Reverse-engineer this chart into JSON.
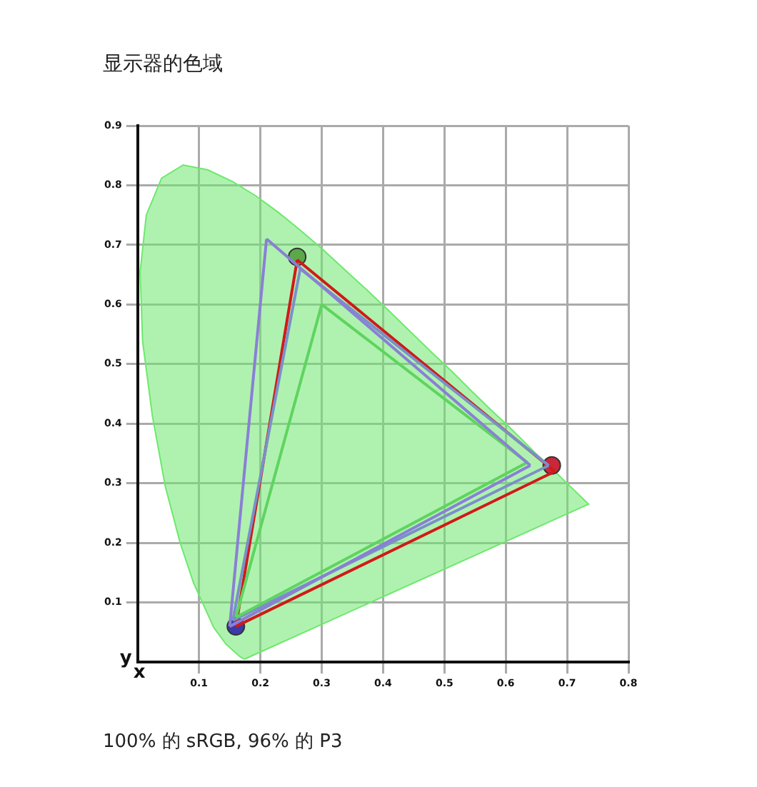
{
  "chart_data": {
    "type": "line",
    "title": "显示器的色域",
    "xlabel": "x",
    "ylabel": "y",
    "xlim": [
      0,
      0.8
    ],
    "xticks": [
      0.1,
      0.2,
      0.3,
      0.4,
      0.5,
      0.6,
      0.7,
      0.8
    ],
    "ylim": [
      0,
      0.9
    ],
    "yticks": [
      0.1,
      0.2,
      0.3,
      0.4,
      0.5,
      0.6,
      0.7,
      0.8,
      0.9
    ],
    "grid": true,
    "line_style": "solid",
    "annotations": [
      "100% 的 sRGB, 96% 的 P3"
    ],
    "series": [
      {
        "type": "area",
        "color": "#6ee86e",
        "x": [
          0.174,
          0.167,
          0.144,
          0.124,
          0.091,
          0.069,
          0.045,
          0.024,
          0.008,
          0.004,
          0.014,
          0.039,
          0.074,
          0.114,
          0.155,
          0.193,
          0.23,
          0.266,
          0.302,
          0.337,
          0.373,
          0.409,
          0.444,
          0.479,
          0.513,
          0.545,
          0.575,
          0.603,
          0.627,
          0.648,
          0.666,
          0.692,
          0.735,
          0.174
        ],
        "values": [
          0.005,
          0.009,
          0.03,
          0.058,
          0.133,
          0.201,
          0.295,
          0.413,
          0.538,
          0.655,
          0.75,
          0.812,
          0.834,
          0.826,
          0.806,
          0.782,
          0.754,
          0.724,
          0.692,
          0.659,
          0.625,
          0.59,
          0.555,
          0.52,
          0.487,
          0.454,
          0.424,
          0.397,
          0.373,
          0.351,
          0.334,
          0.308,
          0.265,
          0.005
        ]
      },
      {
        "type": "line",
        "color": "#8a7fd6",
        "x": [
          0.15,
          0.21
        ],
        "values": [
          0.06,
          0.71
        ]
      },
      {
        "type": "line",
        "color": "#8a7fd6",
        "x": [
          0.21,
          0.64
        ],
        "values": [
          0.71,
          0.33
        ]
      },
      {
        "type": "line",
        "color": "#8a7fd6",
        "x": [
          0.15,
          0.64
        ],
        "values": [
          0.06,
          0.33
        ]
      },
      {
        "type": "line",
        "color": "#5fd45f",
        "x": [
          0.16,
          0.3
        ],
        "values": [
          0.075,
          0.6
        ]
      },
      {
        "type": "line",
        "color": "#5fd45f",
        "x": [
          0.3,
          0.635
        ],
        "values": [
          0.6,
          0.335
        ]
      },
      {
        "type": "line",
        "color": "#5fd45f",
        "x": [
          0.16,
          0.635
        ],
        "values": [
          0.075,
          0.335
        ]
      },
      {
        "type": "line",
        "color": "#7a90c8",
        "x": [
          0.155,
          0.265
        ],
        "values": [
          0.07,
          0.66
        ]
      },
      {
        "type": "line",
        "color": "#7a90c8",
        "x": [
          0.265,
          0.67
        ],
        "values": [
          0.66,
          0.33
        ]
      },
      {
        "type": "line",
        "color": "#7a90c8",
        "x": [
          0.155,
          0.67
        ],
        "values": [
          0.07,
          0.33
        ]
      },
      {
        "type": "line",
        "color": "#d01a1a",
        "x": [
          0.16,
          0.26
        ],
        "values": [
          0.06,
          0.675
        ]
      },
      {
        "type": "line",
        "color": "#d01a1a",
        "x": [
          0.26,
          0.68
        ],
        "values": [
          0.675,
          0.32
        ]
      },
      {
        "type": "line",
        "color": "#d01a1a",
        "x": [
          0.16,
          0.68
        ],
        "values": [
          0.06,
          0.32
        ]
      },
      {
        "type": "scatter",
        "marker": "circle",
        "colors": [
          "#5aa84a",
          "#c8283a",
          "#3a3aa8"
        ],
        "x": [
          0.26,
          0.675,
          0.16
        ],
        "values": [
          0.68,
          0.33,
          0.06
        ]
      }
    ]
  }
}
